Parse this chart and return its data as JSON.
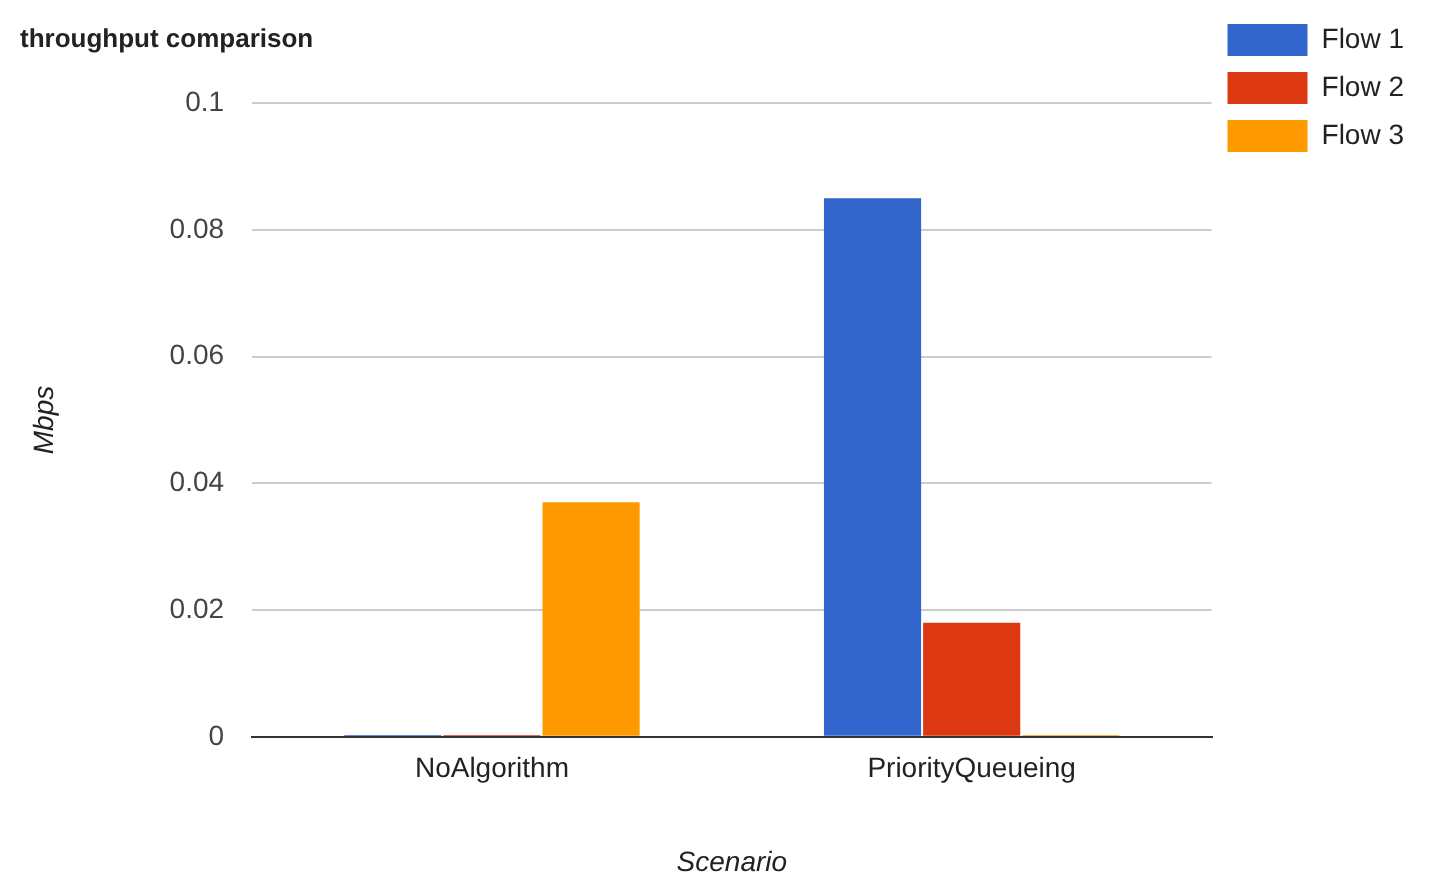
{
  "chart_data": {
    "type": "bar",
    "title": "throughput comparison",
    "xlabel": "Scenario",
    "ylabel": "Mbps",
    "categories": [
      "NoAlgorithm",
      "PriorityQueueing"
    ],
    "series": [
      {
        "name": "Flow 1",
        "color": "#3366cc",
        "values": [
          0.0003,
          0.085
        ]
      },
      {
        "name": "Flow 2",
        "color": "#dc3912",
        "values": [
          0.0003,
          0.018
        ]
      },
      {
        "name": "Flow 3",
        "color": "#ff9900",
        "values": [
          0.037,
          0.0003
        ]
      }
    ],
    "ylim": [
      0,
      0.1
    ],
    "yticks": [
      0,
      0.02,
      0.04,
      0.06,
      0.08,
      0.1
    ],
    "grid": "y",
    "legend": "top right"
  }
}
